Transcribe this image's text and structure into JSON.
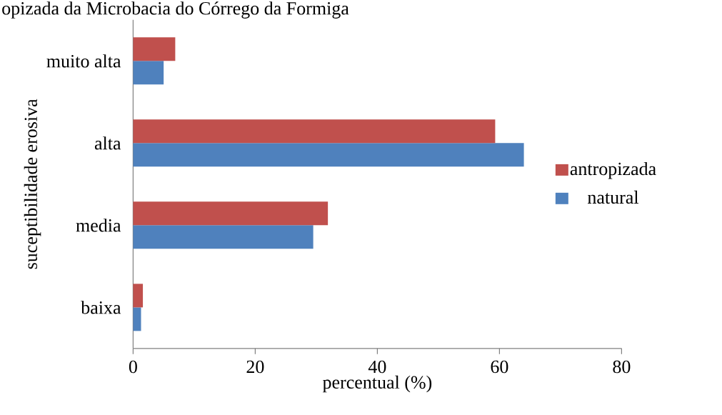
{
  "chart_data": {
    "type": "bar",
    "orientation": "horizontal",
    "title": "opizada da Microbacia do Córrego da Formiga",
    "xlabel": "percentual (%)",
    "ylabel": "suceptibilidade erosiva",
    "categories": [
      "muito alta",
      "alta",
      "media",
      "baixa"
    ],
    "series": [
      {
        "name": "natural",
        "color": "#4f81bd",
        "values": [
          5.0,
          64.0,
          29.5,
          1.3
        ]
      },
      {
        "name": "antropizada",
        "color": "#c0504d",
        "values": [
          6.9,
          59.3,
          31.9,
          1.6
        ]
      }
    ],
    "xlim": [
      0,
      80
    ],
    "xticks": [
      0,
      20,
      40,
      60,
      80
    ],
    "legend": "right",
    "grid": false
  }
}
